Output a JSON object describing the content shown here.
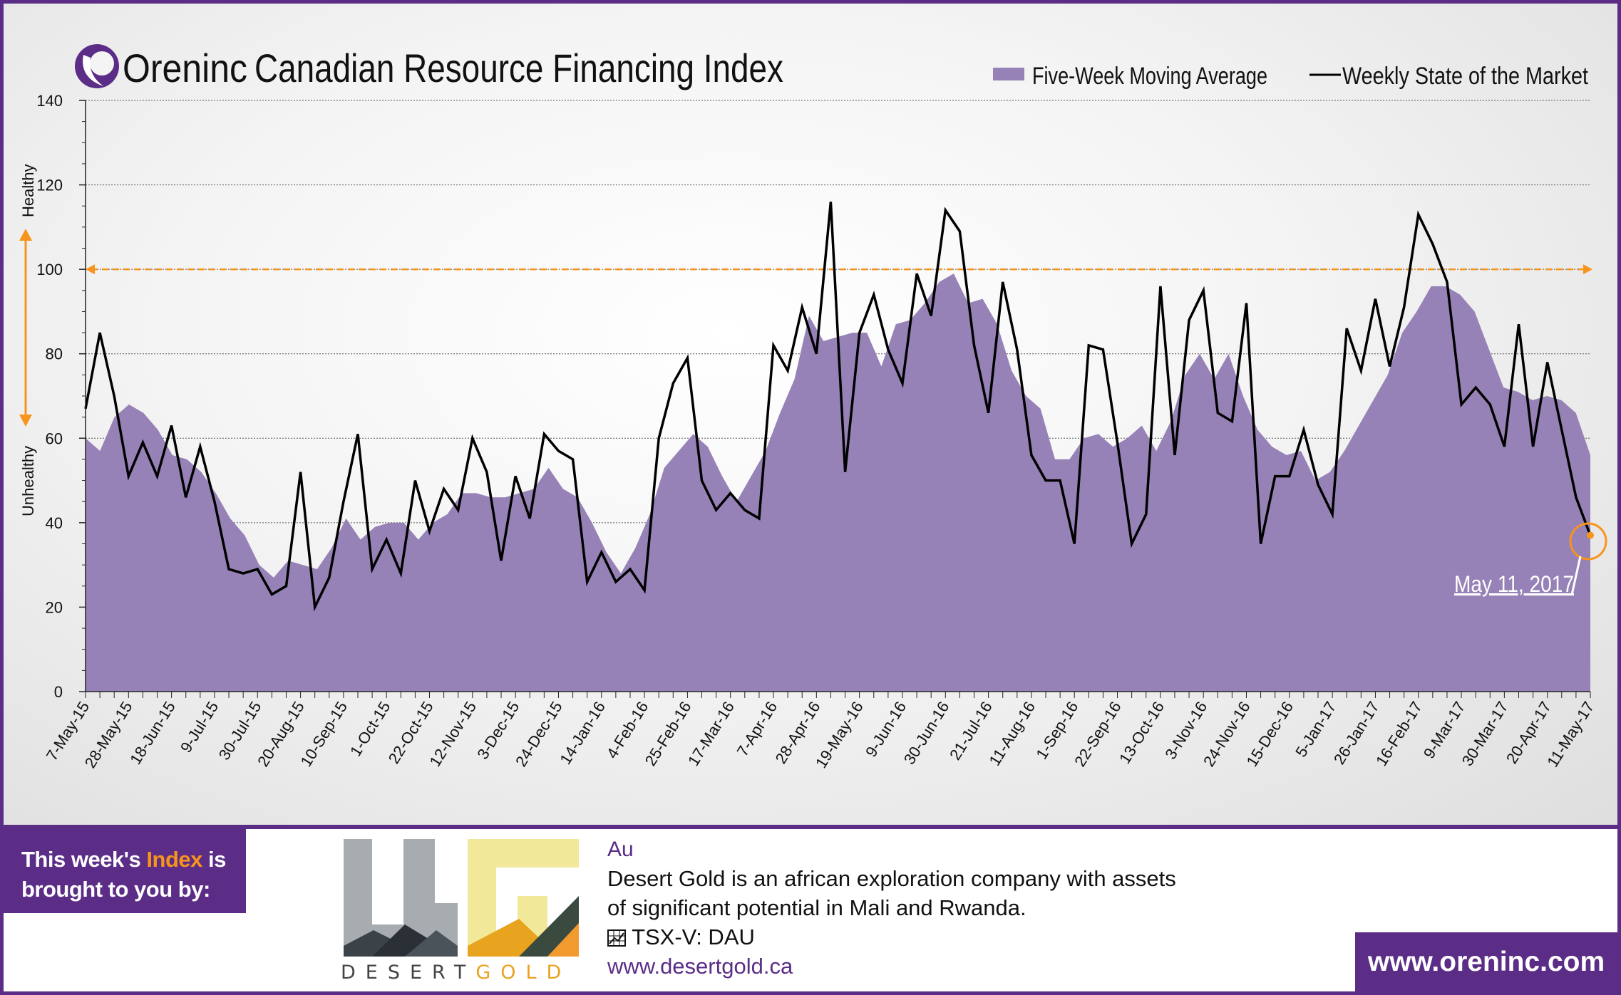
{
  "header": {
    "brand": "Oreninc",
    "title": "Canadian Resource Financing Index"
  },
  "legend": {
    "moving_average_label": "Five-Week Moving Average",
    "weekly_label": "Weekly State of the Market"
  },
  "axis": {
    "healthy_label": "Healthy",
    "unhealthy_label": "Unhealthy"
  },
  "annotation": {
    "current_date": "May 11, 2017"
  },
  "colors": {
    "area": "#9682b6",
    "line": "#000000",
    "threshold": "#f7941d",
    "brand_purple": "#5b2d86"
  },
  "sponsor": {
    "line1_prefix": "This week's ",
    "line1_highlight": "Index",
    "line1_suffix": " is",
    "line2": "brought to you by:",
    "logo_word_left": "DESERT",
    "logo_word_right": "GOLD",
    "symbol": "Au",
    "description_line1": "Desert Gold is an african exploration company with assets",
    "description_line2": "of significant potential in Mali and Rwanda.",
    "ticker_icon": "chart-icon",
    "ticker": "TSX-V:  DAU",
    "url": "www.desertgold.ca"
  },
  "footer": {
    "website": "www.oreninc.com"
  },
  "chart_data": {
    "type": "line",
    "ylim": [
      0,
      140
    ],
    "yticks": [
      0,
      20,
      40,
      60,
      80,
      100,
      120,
      140
    ],
    "threshold": 100,
    "grid": true,
    "legend_position": "top-right",
    "tick_labels": [
      "7-May-15",
      "28-May-15",
      "18-Jun-15",
      "9-Jul-15",
      "30-Jul-15",
      "20-Aug-15",
      "10-Sep-15",
      "1-Oct-15",
      "22-Oct-15",
      "12-Nov-15",
      "3-Dec-15",
      "24-Dec-15",
      "14-Jan-16",
      "4-Feb-16",
      "25-Feb-16",
      "17-Mar-16",
      "7-Apr-16",
      "28-Apr-16",
      "19-May-16",
      "9-Jun-16",
      "30-Jun-16",
      "21-Jul-16",
      "11-Aug-16",
      "1-Sep-16",
      "22-Sep-16",
      "13-Oct-16",
      "3-Nov-16",
      "24-Nov-16",
      "15-Dec-16",
      "5-Jan-17",
      "26-Jan-17",
      "16-Feb-17",
      "9-Mar-17",
      "30-Mar-17",
      "20-Apr-17",
      "11-May-17"
    ],
    "series": [
      {
        "name": "Five-Week Moving Average",
        "style": "area",
        "values": [
          60,
          57,
          65,
          68,
          66,
          62,
          56,
          55,
          52,
          47,
          41,
          37,
          30,
          27,
          31,
          30,
          29,
          34,
          41,
          36,
          39,
          40,
          40,
          36,
          40,
          42,
          47,
          47,
          46,
          46,
          47,
          48,
          53,
          48,
          46,
          40,
          33,
          28,
          34,
          42,
          53,
          57,
          61,
          58,
          51,
          45,
          51,
          57,
          66,
          74,
          89,
          83,
          84,
          85,
          85,
          77,
          87,
          88,
          92,
          97,
          99,
          92,
          93,
          87,
          76,
          70,
          67,
          55,
          55,
          60,
          61,
          58,
          60,
          63,
          57,
          64,
          75,
          80,
          74,
          80,
          70,
          62,
          58,
          56,
          57,
          50,
          52,
          57,
          63,
          69,
          75,
          85,
          90,
          96,
          96,
          94,
          90,
          81,
          72,
          71,
          69,
          70,
          69,
          66,
          56
        ]
      },
      {
        "name": "Weekly State of the Market",
        "style": "line",
        "values": [
          67,
          85,
          70,
          51,
          59,
          51,
          63,
          46,
          58,
          45,
          29,
          28,
          29,
          23,
          25,
          52,
          20,
          27,
          45,
          61,
          29,
          36,
          28,
          50,
          38,
          48,
          43,
          60,
          52,
          31,
          51,
          41,
          61,
          57,
          55,
          26,
          33,
          26,
          29,
          24,
          60,
          73,
          79,
          50,
          43,
          47,
          43,
          41,
          82,
          76,
          91,
          80,
          116,
          52,
          85,
          94,
          81,
          73,
          99,
          89,
          114,
          109,
          82,
          66,
          97,
          81,
          56,
          50,
          50,
          35,
          82,
          81,
          59,
          35,
          42,
          96,
          56,
          88,
          95,
          66,
          64,
          92,
          35,
          51,
          51,
          62,
          49,
          42,
          86,
          76,
          93,
          77,
          91,
          113,
          106,
          97,
          68,
          72,
          68,
          58,
          87,
          58,
          78,
          62,
          46,
          37
        ]
      }
    ]
  }
}
